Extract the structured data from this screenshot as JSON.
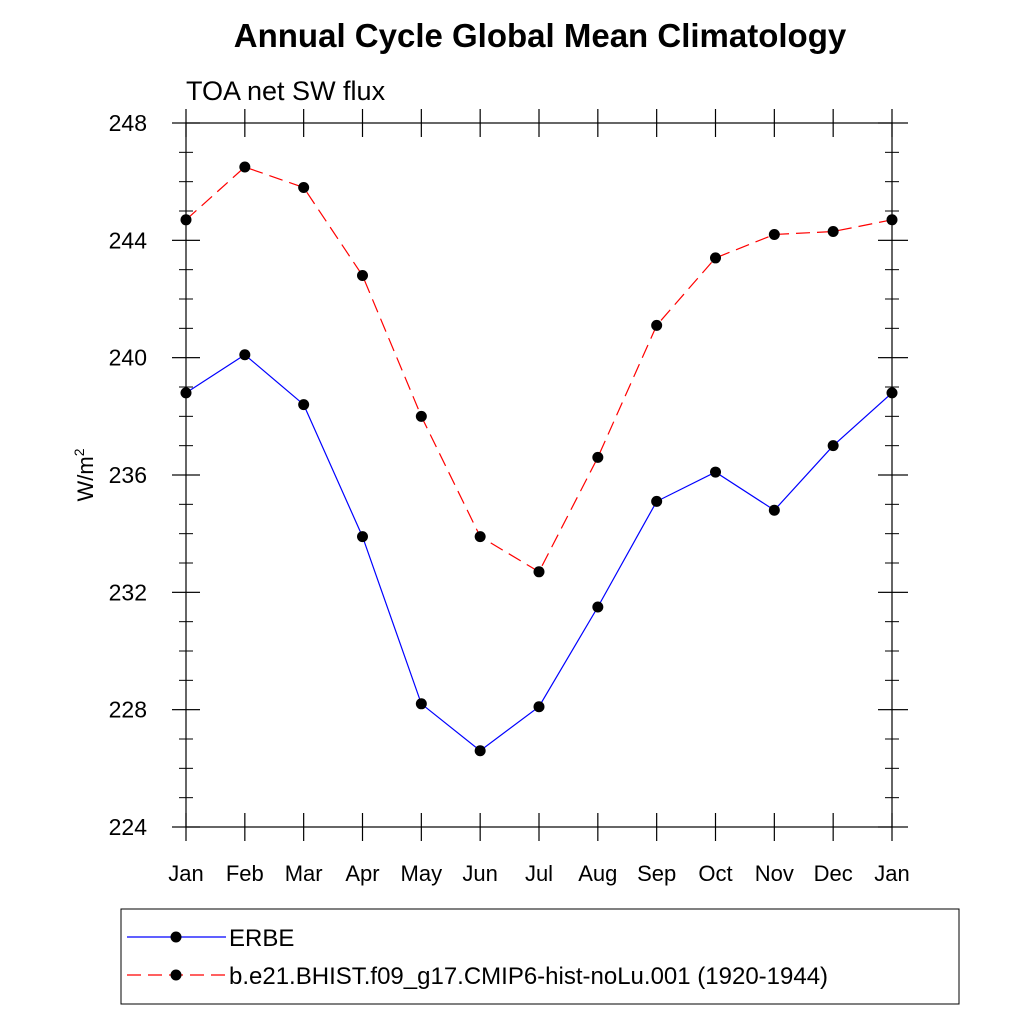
{
  "chart_data": {
    "type": "line",
    "title": "Annual Cycle Global Mean Climatology",
    "subtitle": "TOA net SW flux",
    "ylabel": "W/m",
    "ylabel_superscript": "2",
    "xlabel": "",
    "ylim": [
      224,
      248
    ],
    "yticks": [
      224,
      228,
      232,
      236,
      240,
      244,
      248
    ],
    "yticks_text": [
      "224",
      "228",
      "232",
      "236",
      "240",
      "244",
      "248"
    ],
    "categories": [
      "Jan",
      "Feb",
      "Mar",
      "Apr",
      "May",
      "Jun",
      "Jul",
      "Aug",
      "Sep",
      "Oct",
      "Nov",
      "Dec",
      "Jan"
    ],
    "grid": false,
    "legend_position": "bottom",
    "series": [
      {
        "name": "ERBE",
        "color": "#0000ff",
        "dash": "solid",
        "values": [
          238.8,
          240.1,
          238.4,
          233.9,
          228.2,
          226.6,
          228.1,
          231.5,
          235.1,
          236.1,
          234.8,
          237.0,
          238.8
        ]
      },
      {
        "name": "b.e21.BHIST.f09_g17.CMIP6-hist-noLu.001 (1920-1944)",
        "color": "#ff0000",
        "dash": "dashed",
        "values": [
          244.7,
          246.5,
          245.8,
          242.8,
          238.0,
          233.9,
          232.7,
          236.6,
          241.1,
          243.4,
          244.2,
          244.3,
          244.7
        ]
      }
    ]
  }
}
